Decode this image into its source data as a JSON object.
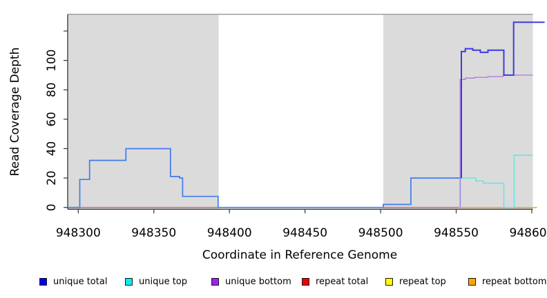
{
  "chart_data": {
    "type": "line",
    "subtype": "step-after",
    "title": "",
    "xlabel": "Coordinate in Reference Genome",
    "ylabel": "Read Coverage Depth",
    "xlim": [
      948293,
      948600.7
    ],
    "ylim": [
      0,
      131.5
    ],
    "grid": false,
    "legend_position": "bottom",
    "x_ticks": [
      {
        "v": 948300,
        "label": "948300"
      },
      {
        "v": 948350,
        "label": "948350"
      },
      {
        "v": 948400,
        "label": "948400"
      },
      {
        "v": 948450,
        "label": "948450"
      },
      {
        "v": 948500,
        "label": "948500"
      },
      {
        "v": 948550,
        "label": "948550"
      },
      {
        "v": 948600,
        "label": "948600"
      }
    ],
    "y_ticks": [
      {
        "v": 0,
        "label": "0"
      },
      {
        "v": 20,
        "label": "20"
      },
      {
        "v": 40,
        "label": "40"
      },
      {
        "v": 60,
        "label": "60"
      },
      {
        "v": 80,
        "label": "80"
      },
      {
        "v": 100,
        "label": "100"
      },
      {
        "v": 120,
        "label": ""
      }
    ],
    "shaded_regions": [
      {
        "x0": 948293,
        "x1": 948392.8,
        "color": "#dbdbdb"
      },
      {
        "x0": 948501.8,
        "x1": 948600.7,
        "color": "#dbdbdb"
      }
    ],
    "series": [
      {
        "name": "repeat total",
        "color": "#e8415c",
        "lw": 1.2,
        "start": [
          948300,
          0
        ],
        "points": [],
        "end": 948601.5
      },
      {
        "name": "repeat top",
        "color": "#ffff00",
        "lw": 1.2,
        "start": [
          948552,
          0
        ],
        "points": [],
        "end": 948601.5
      },
      {
        "name": "repeat bottom",
        "color": "#ffa50a",
        "lw": 1.5,
        "start": [
          948552,
          0
        ],
        "points": [],
        "end": 948603.5
      },
      {
        "name": "unique total",
        "color": "#3f7bec",
        "lw": 1.7,
        "start": [
          948293,
          0
        ],
        "points": [
          [
            948301,
            19
          ],
          [
            948307.5,
            32
          ],
          [
            948331.5,
            40
          ],
          [
            948361,
            21
          ],
          [
            948367,
            20
          ],
          [
            948369,
            7.5
          ],
          [
            948392.5,
            0
          ],
          [
            948501.8,
            2
          ],
          [
            948520,
            20
          ]
        ],
        "end": 948553.4
      },
      {
        "name": "unique top",
        "color": "#5fe3e6",
        "lw": 1.4,
        "start": [
          948552.8,
          0
        ],
        "points": [
          [
            948552.8,
            20
          ],
          [
            948563,
            18
          ],
          [
            948568,
            16.5
          ],
          [
            948581.5,
            0
          ],
          [
            948588.3,
            35.5
          ]
        ],
        "end": 948600.7
      },
      {
        "name": "unique bottom",
        "color": "#b671e0",
        "lw": 1.3,
        "start": [
          948552.6,
          0
        ],
        "points": [
          [
            948552.6,
            87
          ],
          [
            948556,
            88
          ],
          [
            948562,
            88.5
          ],
          [
            948571,
            89
          ],
          [
            948581,
            90
          ]
        ],
        "end": 948600.7
      },
      {
        "name": "unique total",
        "color": "#3b3be0",
        "lw": 2,
        "start": [
          948553.4,
          20
        ],
        "points": [
          [
            948553.4,
            106
          ],
          [
            948556,
            108
          ],
          [
            948561,
            107
          ],
          [
            948566,
            105.5
          ],
          [
            948571,
            107
          ],
          [
            948581,
            107
          ],
          [
            948581.5,
            90
          ],
          [
            948588,
            126
          ]
        ],
        "end": 948608.5
      }
    ]
  },
  "legend": {
    "items": [
      {
        "label": "unique total",
        "color": "#0000ee"
      },
      {
        "label": "unique top",
        "color": "#00eeee"
      },
      {
        "label": "unique bottom",
        "color": "#a020f0"
      },
      {
        "label": "repeat total",
        "color": "#ee0000"
      },
      {
        "label": "repeat top",
        "color": "#ffff00"
      },
      {
        "label": "repeat bottom",
        "color": "#ffa500"
      }
    ]
  }
}
